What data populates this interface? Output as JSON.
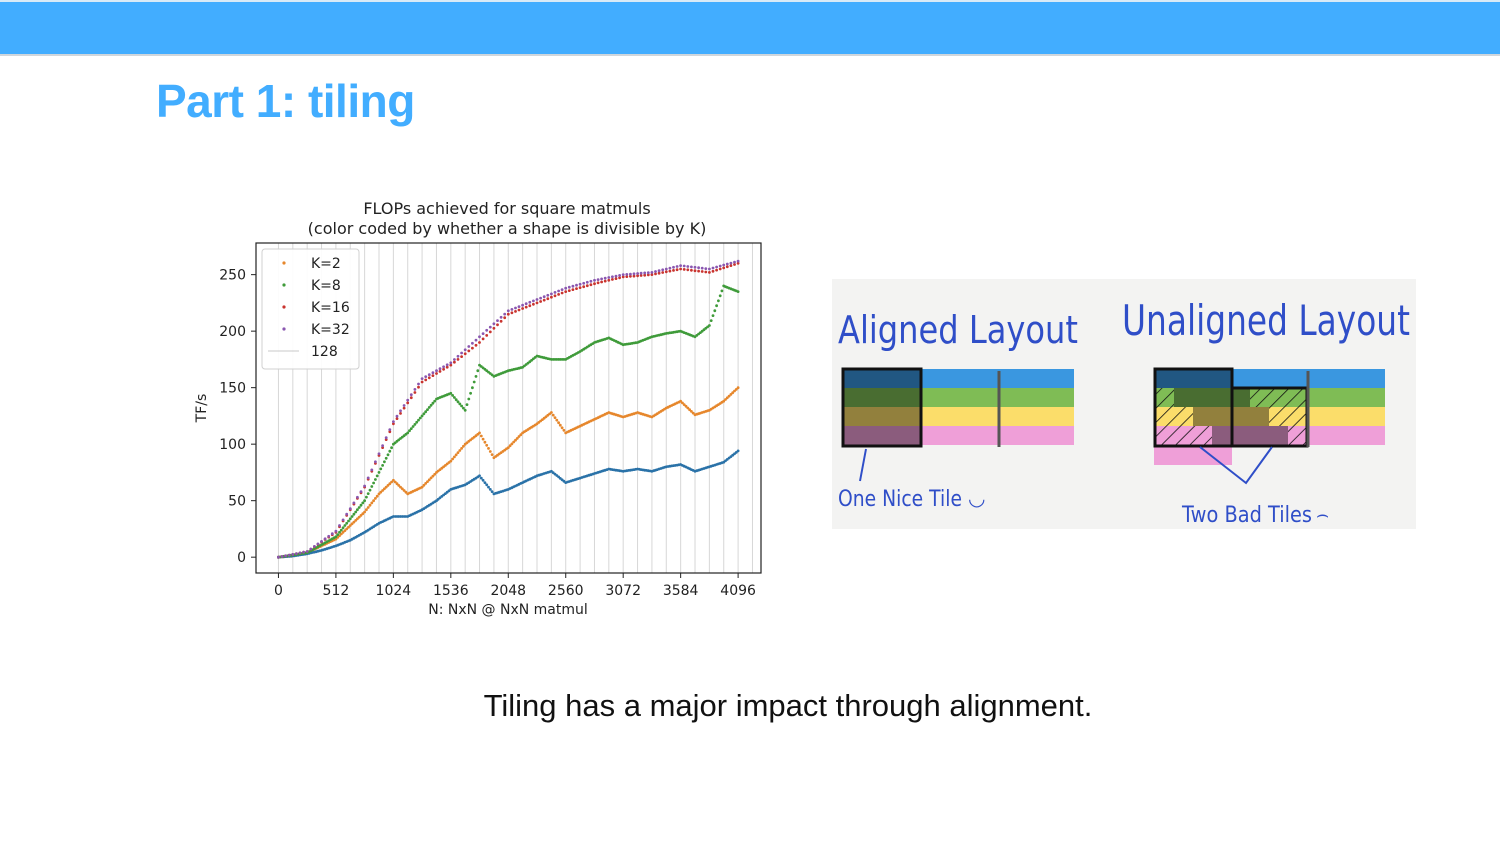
{
  "slide": {
    "title": "Part 1: tiling",
    "caption": "Tiling has a major impact through alignment."
  },
  "colors": {
    "header_bar": "#42adff",
    "title": "#42adff",
    "k2": "#e6872c",
    "k8": "#3f9b3a",
    "k16": "#c9342f",
    "k32": "#8a57b0",
    "base_series": "#2a72a8"
  },
  "chart_data": {
    "type": "scatter",
    "title": "FLOPs achieved for square matmuls",
    "subtitle": "(color coded by whether a shape is divisible by K)",
    "xlabel": "N: NxN @ NxN matmul",
    "ylabel": "TF/s",
    "xlim": [
      -200,
      4300
    ],
    "ylim": [
      -14,
      278
    ],
    "xticks": [
      0,
      512,
      1024,
      1536,
      2048,
      2560,
      3072,
      3584,
      4096
    ],
    "yticks": [
      0,
      50,
      100,
      150,
      200,
      250
    ],
    "vertical_gridlines_every": 128,
    "legend_position": "upper left",
    "legend": [
      "K=2",
      "K=8",
      "K=16",
      "K=32",
      "128"
    ],
    "series": [
      {
        "name": "K=2",
        "color": "#e6872c",
        "x": [
          0,
          128,
          256,
          384,
          512,
          640,
          768,
          896,
          1024,
          1152,
          1280,
          1408,
          1536,
          1664,
          1792,
          1920,
          2048,
          2176,
          2304,
          2432,
          2560,
          2688,
          2816,
          2944,
          3072,
          3200,
          3328,
          3456,
          3584,
          3712,
          3840,
          3968,
          4096
        ],
        "y": [
          0,
          1,
          4,
          10,
          16,
          28,
          40,
          56,
          68,
          56,
          62,
          75,
          85,
          100,
          110,
          88,
          97,
          110,
          118,
          128,
          110,
          116,
          122,
          128,
          124,
          128,
          124,
          132,
          138,
          126,
          130,
          138,
          150
        ]
      },
      {
        "name": "",
        "color": "#2a72a8",
        "x": [
          0,
          128,
          256,
          384,
          512,
          640,
          768,
          896,
          1024,
          1152,
          1280,
          1408,
          1536,
          1664,
          1792,
          1920,
          2048,
          2176,
          2304,
          2432,
          2560,
          2688,
          2816,
          2944,
          3072,
          3200,
          3328,
          3456,
          3584,
          3712,
          3840,
          3968,
          4096
        ],
        "y": [
          0,
          1,
          3,
          6,
          10,
          15,
          22,
          30,
          36,
          36,
          42,
          50,
          60,
          64,
          72,
          56,
          60,
          66,
          72,
          76,
          66,
          70,
          74,
          78,
          76,
          78,
          76,
          80,
          82,
          76,
          80,
          84,
          94
        ]
      },
      {
        "name": "K=8",
        "color": "#3f9b3a",
        "x": [
          0,
          256,
          512,
          768,
          1024,
          1152,
          1280,
          1408,
          1536,
          1664,
          1792,
          1920,
          2048,
          2176,
          2304,
          2432,
          2560,
          2688,
          2816,
          2944,
          3072,
          3200,
          3328,
          3456,
          3584,
          3712,
          3840,
          3968,
          4096
        ],
        "y": [
          0,
          4,
          18,
          50,
          100,
          110,
          125,
          140,
          145,
          130,
          170,
          160,
          165,
          168,
          178,
          175,
          175,
          182,
          190,
          194,
          188,
          190,
          195,
          198,
          200,
          195,
          205,
          240,
          235
        ]
      },
      {
        "name": "K=16",
        "color": "#c9342f",
        "x": [
          0,
          256,
          512,
          768,
          1024,
          1280,
          1536,
          1792,
          2048,
          2304,
          2560,
          2816,
          3072,
          3328,
          3584,
          3840,
          4096
        ],
        "y": [
          0,
          5,
          22,
          62,
          118,
          155,
          170,
          190,
          215,
          225,
          235,
          242,
          248,
          250,
          255,
          252,
          260
        ]
      },
      {
        "name": "K=32",
        "color": "#8a57b0",
        "x": [
          0,
          256,
          512,
          768,
          1024,
          1280,
          1536,
          1792,
          2048,
          2304,
          2560,
          2816,
          3072,
          3328,
          3584,
          3840,
          4096
        ],
        "y": [
          0,
          5,
          23,
          63,
          120,
          158,
          172,
          195,
          218,
          228,
          238,
          245,
          250,
          252,
          258,
          255,
          262
        ]
      }
    ]
  },
  "diagram": {
    "aligned_title": "Aligned Layout",
    "unaligned_title": "Unaligned Layout",
    "aligned_note": "One Nice Tile",
    "unaligned_note": "Two Bad Tiles",
    "aligned_face": "◡",
    "unaligned_face": "⌢",
    "row_colors": [
      "#3a97e0",
      "#7fbc55",
      "#fbdd6a",
      "#ef9fd8"
    ]
  }
}
